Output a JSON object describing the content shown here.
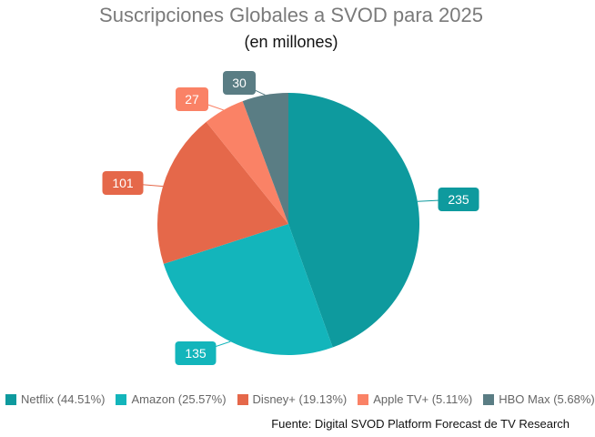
{
  "chart_data": {
    "type": "pie",
    "title": "Suscripciones Globales a SVOD para 2025",
    "subtitle": "(en millones)",
    "categories": [
      "Netflix",
      "Amazon",
      "Disney+",
      "Apple TV+",
      "HBO Max"
    ],
    "values": [
      235,
      135,
      101,
      27,
      30
    ],
    "data_labels": [
      "235",
      "135",
      "101",
      "27",
      "30"
    ],
    "legend": [
      "Netflix (44.51%)",
      "Amazon (25.57%)",
      "Disney+ (19.13%)",
      "Apple TV+ (5.11%)",
      "HBO Max (5.68%)"
    ],
    "colors": [
      "#0e9a9e",
      "#13b5bb",
      "#e5684a",
      "#fa8266",
      "#5a7d84"
    ],
    "legend_position": "bottom",
    "source": "Fuente: Digital SVOD Platform Forecast de TV Research"
  }
}
